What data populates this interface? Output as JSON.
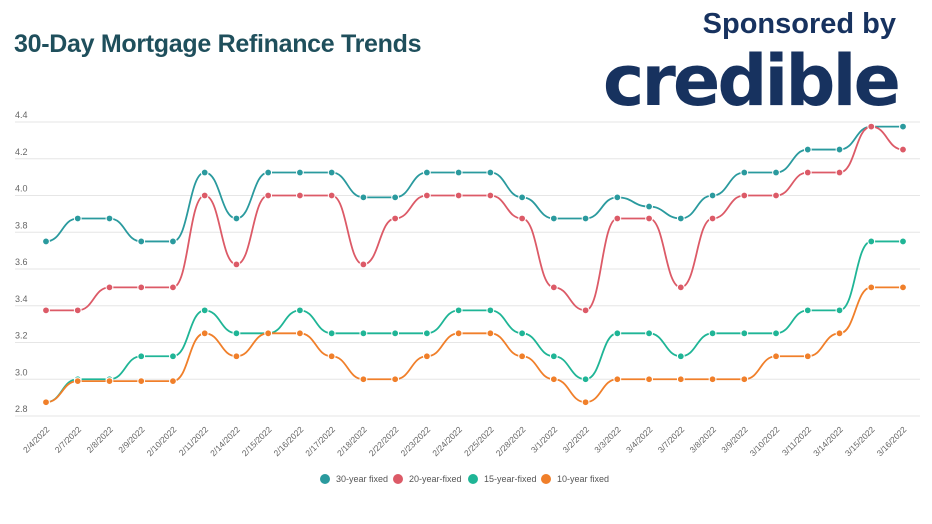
{
  "header": {
    "title": "30-Day Mortgage Refinance Trends",
    "sponsor_text": "Sponsored by",
    "logo_text": "credible"
  },
  "chart_data": {
    "type": "line",
    "title": "30-Day Mortgage Refinance Trends",
    "xlabel": "",
    "ylabel": "",
    "ylim": [
      2.8,
      4.4
    ],
    "yticks": [
      "2.8",
      "3.0",
      "3.2",
      "3.4",
      "3.6",
      "3.8",
      "4.0",
      "4.2",
      "4.4"
    ],
    "grid": true,
    "legend": "bottom",
    "categories": [
      "2/4/2022",
      "2/7/2022",
      "2/8/2022",
      "2/9/2022",
      "2/10/2022",
      "2/11/2022",
      "2/14/2022",
      "2/15/2022",
      "2/16/2022",
      "2/17/2022",
      "2/18/2022",
      "2/22/2022",
      "2/23/2022",
      "2/24/2022",
      "2/25/2022",
      "2/28/2022",
      "3/1/2022",
      "3/2/2022",
      "3/3/2022",
      "3/4/2022",
      "3/7/2022",
      "3/8/2022",
      "3/9/2022",
      "3/10/2022",
      "3/11/2022",
      "3/14/2022",
      "3/15/2022",
      "3/16/2022"
    ],
    "series": [
      {
        "name": "30-year fixed",
        "color": "#2a9a9e",
        "values": [
          3.75,
          3.875,
          3.875,
          3.75,
          3.75,
          4.125,
          3.875,
          4.125,
          4.125,
          4.125,
          3.99,
          3.99,
          4.125,
          4.125,
          4.125,
          3.99,
          3.875,
          3.875,
          3.99,
          3.94,
          3.875,
          4.0,
          4.125,
          4.125,
          4.25,
          4.25,
          4.375,
          4.375
        ]
      },
      {
        "name": "20-year-fixed",
        "color": "#dc5a67",
        "values": [
          3.375,
          3.375,
          3.5,
          3.5,
          3.5,
          4.0,
          3.625,
          4.0,
          4.0,
          4.0,
          3.625,
          3.875,
          4.0,
          4.0,
          4.0,
          3.875,
          3.5,
          3.375,
          3.875,
          3.875,
          3.5,
          3.875,
          4.0,
          4.0,
          4.125,
          4.125,
          4.375,
          4.25
        ]
      },
      {
        "name": "15-year-fixed",
        "color": "#1fb596",
        "values": [
          2.875,
          3.0,
          3.0,
          3.125,
          3.125,
          3.375,
          3.25,
          3.25,
          3.375,
          3.25,
          3.25,
          3.25,
          3.25,
          3.375,
          3.375,
          3.25,
          3.125,
          3.0,
          3.25,
          3.25,
          3.125,
          3.25,
          3.25,
          3.25,
          3.375,
          3.375,
          3.75,
          3.75
        ]
      },
      {
        "name": "10-year fixed",
        "color": "#f07f2a",
        "values": [
          2.875,
          2.99,
          2.99,
          2.99,
          2.99,
          3.25,
          3.125,
          3.25,
          3.25,
          3.125,
          3.0,
          3.0,
          3.125,
          3.25,
          3.25,
          3.125,
          3.0,
          2.875,
          3.0,
          3.0,
          3.0,
          3.0,
          3.0,
          3.125,
          3.125,
          3.25,
          3.5,
          3.5
        ]
      }
    ]
  }
}
